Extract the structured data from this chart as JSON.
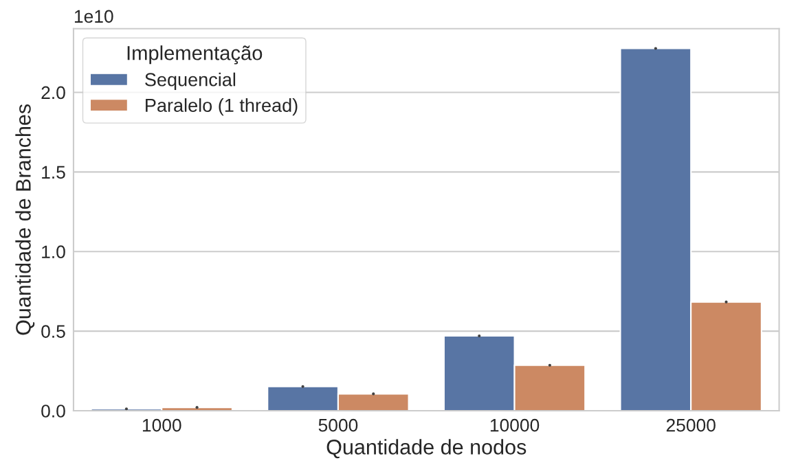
{
  "chart_data": {
    "type": "bar",
    "xlabel": "Quantidade de nodos",
    "ylabel": "Quantidade de Branches",
    "legend_title": "Implementação",
    "categories": [
      "1000",
      "5000",
      "10000",
      "25000"
    ],
    "series": [
      {
        "name": "Sequencial",
        "color": "#5875a4",
        "values": [
          0.012,
          0.152,
          0.47,
          2.276
        ],
        "errors": [
          0,
          0,
          0,
          0
        ]
      },
      {
        "name": "Paralelo (1 thread)",
        "color": "#cc8963",
        "values": [
          0.021,
          0.106,
          0.286,
          0.683
        ],
        "errors": [
          0,
          0,
          0,
          0
        ]
      }
    ],
    "ylim": [
      0,
      2.4
    ],
    "yticks": [
      {
        "value": 0,
        "label": "0.0"
      },
      0.5,
      {
        "value": 1,
        "label": "1.0"
      },
      1.5,
      {
        "value": 2,
        "label": "2.0"
      }
    ],
    "annotations": [
      "1e10"
    ],
    "grid": "y",
    "legend": "top left"
  }
}
